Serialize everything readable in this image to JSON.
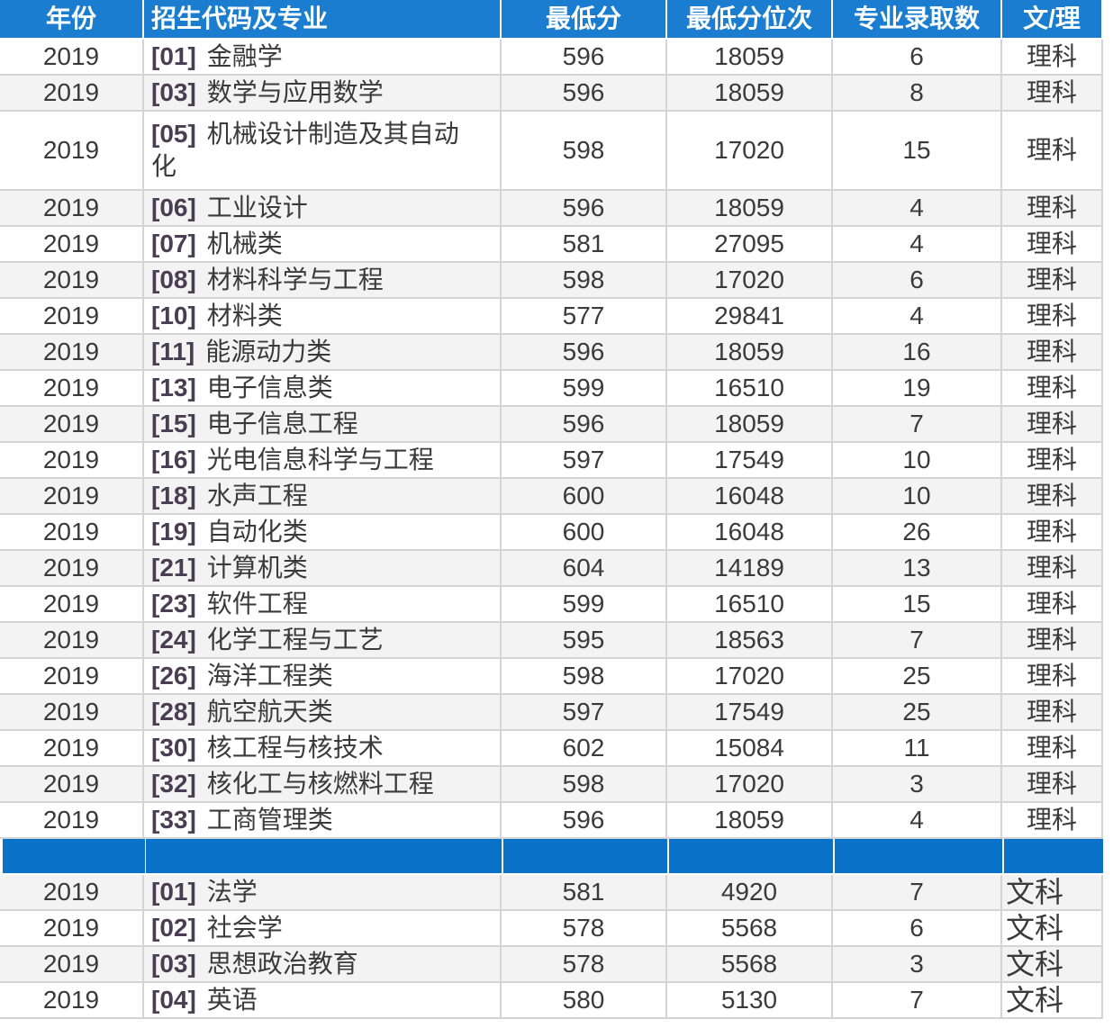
{
  "table": {
    "header": [
      "年份",
      "招生代码及专业",
      "最低分",
      "最低分位次",
      "专业录取数",
      "文/理"
    ],
    "sections": [
      {
        "rows": [
          [
            2019,
            "[01]",
            "金融学",
            596,
            18059,
            6,
            "理科"
          ],
          [
            2019,
            "[03]",
            "数学与应用数学",
            596,
            18059,
            8,
            "理科"
          ],
          [
            2019,
            "[05]",
            "机械设计制造及其自动化",
            598,
            17020,
            15,
            "理科"
          ],
          [
            2019,
            "[06]",
            "工业设计",
            596,
            18059,
            4,
            "理科"
          ],
          [
            2019,
            "[07]",
            "机械类",
            581,
            27095,
            4,
            "理科"
          ],
          [
            2019,
            "[08]",
            "材料科学与工程",
            598,
            17020,
            6,
            "理科"
          ],
          [
            2019,
            "[10]",
            "材料类",
            577,
            29841,
            4,
            "理科"
          ],
          [
            2019,
            "[11]",
            "能源动力类",
            596,
            18059,
            16,
            "理科"
          ],
          [
            2019,
            "[13]",
            "电子信息类",
            599,
            16510,
            19,
            "理科"
          ],
          [
            2019,
            "[15]",
            "电子信息工程",
            596,
            18059,
            7,
            "理科"
          ],
          [
            2019,
            "[16]",
            "光电信息科学与工程",
            597,
            17549,
            10,
            "理科"
          ],
          [
            2019,
            "[18]",
            "水声工程",
            600,
            16048,
            10,
            "理科"
          ],
          [
            2019,
            "[19]",
            "自动化类",
            600,
            16048,
            26,
            "理科"
          ],
          [
            2019,
            "[21]",
            "计算机类",
            604,
            14189,
            13,
            "理科"
          ],
          [
            2019,
            "[23]",
            "软件工程",
            599,
            16510,
            15,
            "理科"
          ],
          [
            2019,
            "[24]",
            "化学工程与工艺",
            595,
            18563,
            7,
            "理科"
          ],
          [
            2019,
            "[26]",
            "海洋工程类",
            598,
            17020,
            25,
            "理科"
          ],
          [
            2019,
            "[28]",
            "航空航天类",
            597,
            17549,
            25,
            "理科"
          ],
          [
            2019,
            "[30]",
            "核工程与核技术",
            602,
            15084,
            11,
            "理科"
          ],
          [
            2019,
            "[32]",
            "核化工与核燃料工程",
            598,
            17020,
            3,
            "理科"
          ],
          [
            2019,
            "[33]",
            "工商管理类",
            596,
            18059,
            4,
            "理科"
          ]
        ]
      },
      {
        "rows": [
          [
            2019,
            "[01]",
            "法学",
            581,
            4920,
            7,
            "文科"
          ],
          [
            2019,
            "[02]",
            "社会学",
            578,
            5568,
            6,
            "文科"
          ],
          [
            2019,
            "[03]",
            "思想政治教育",
            578,
            5568,
            3,
            "文科"
          ],
          [
            2019,
            "[04]",
            "英语",
            580,
            5130,
            7,
            "文科"
          ]
        ]
      }
    ]
  }
}
